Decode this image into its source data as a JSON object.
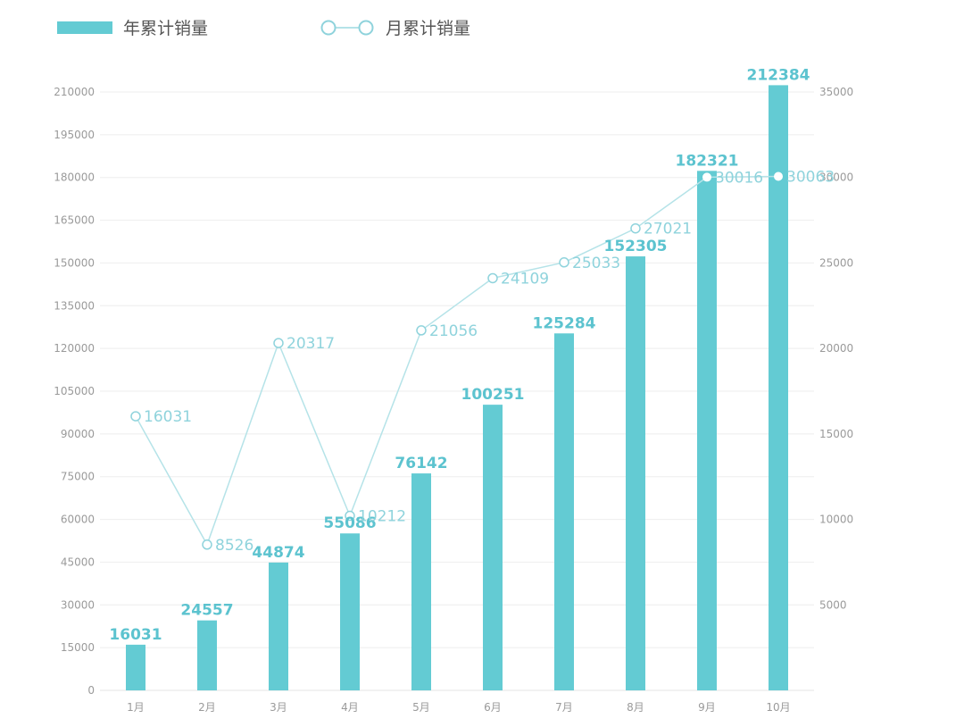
{
  "legend": {
    "bar_label": "年累计销量",
    "line_label": "月累计销量"
  },
  "colors": {
    "bar": "#63cbd3",
    "line": "#b5e3e8",
    "marker_stroke": "#8fd3dc",
    "bar_label": "#5cc3cf",
    "line_label": "#8fd3dc",
    "grid": "#eeeeee",
    "tick": "#9a9a9a"
  },
  "chart_data": {
    "type": "bar",
    "categories": [
      "1月",
      "2月",
      "3月",
      "4月",
      "5月",
      "6月",
      "7月",
      "8月",
      "9月",
      "10月"
    ],
    "series": [
      {
        "name": "年累计销量",
        "type": "bar",
        "axis": "left",
        "values": [
          16031,
          24557,
          44874,
          55086,
          76142,
          100251,
          125284,
          152305,
          182321,
          212384
        ]
      },
      {
        "name": "月累计销量",
        "type": "line",
        "axis": "right",
        "values": [
          16031,
          8526,
          20317,
          10212,
          21056,
          24109,
          25033,
          27021,
          30016,
          30063
        ]
      }
    ],
    "left_axis": {
      "ylim": [
        0,
        210000
      ],
      "ticks": [
        "0",
        "15000",
        "30000",
        "45000",
        "60000",
        "75000",
        "90000",
        "105000",
        "120000",
        "135000",
        "150000",
        "165000",
        "180000",
        "195000",
        "210000"
      ]
    },
    "right_axis": {
      "ylim": [
        0,
        35000
      ],
      "ticks": [
        "5000",
        "10000",
        "15000",
        "20000",
        "25000",
        "30000",
        "35000"
      ]
    },
    "grid": true,
    "legend_position": "top-left"
  }
}
